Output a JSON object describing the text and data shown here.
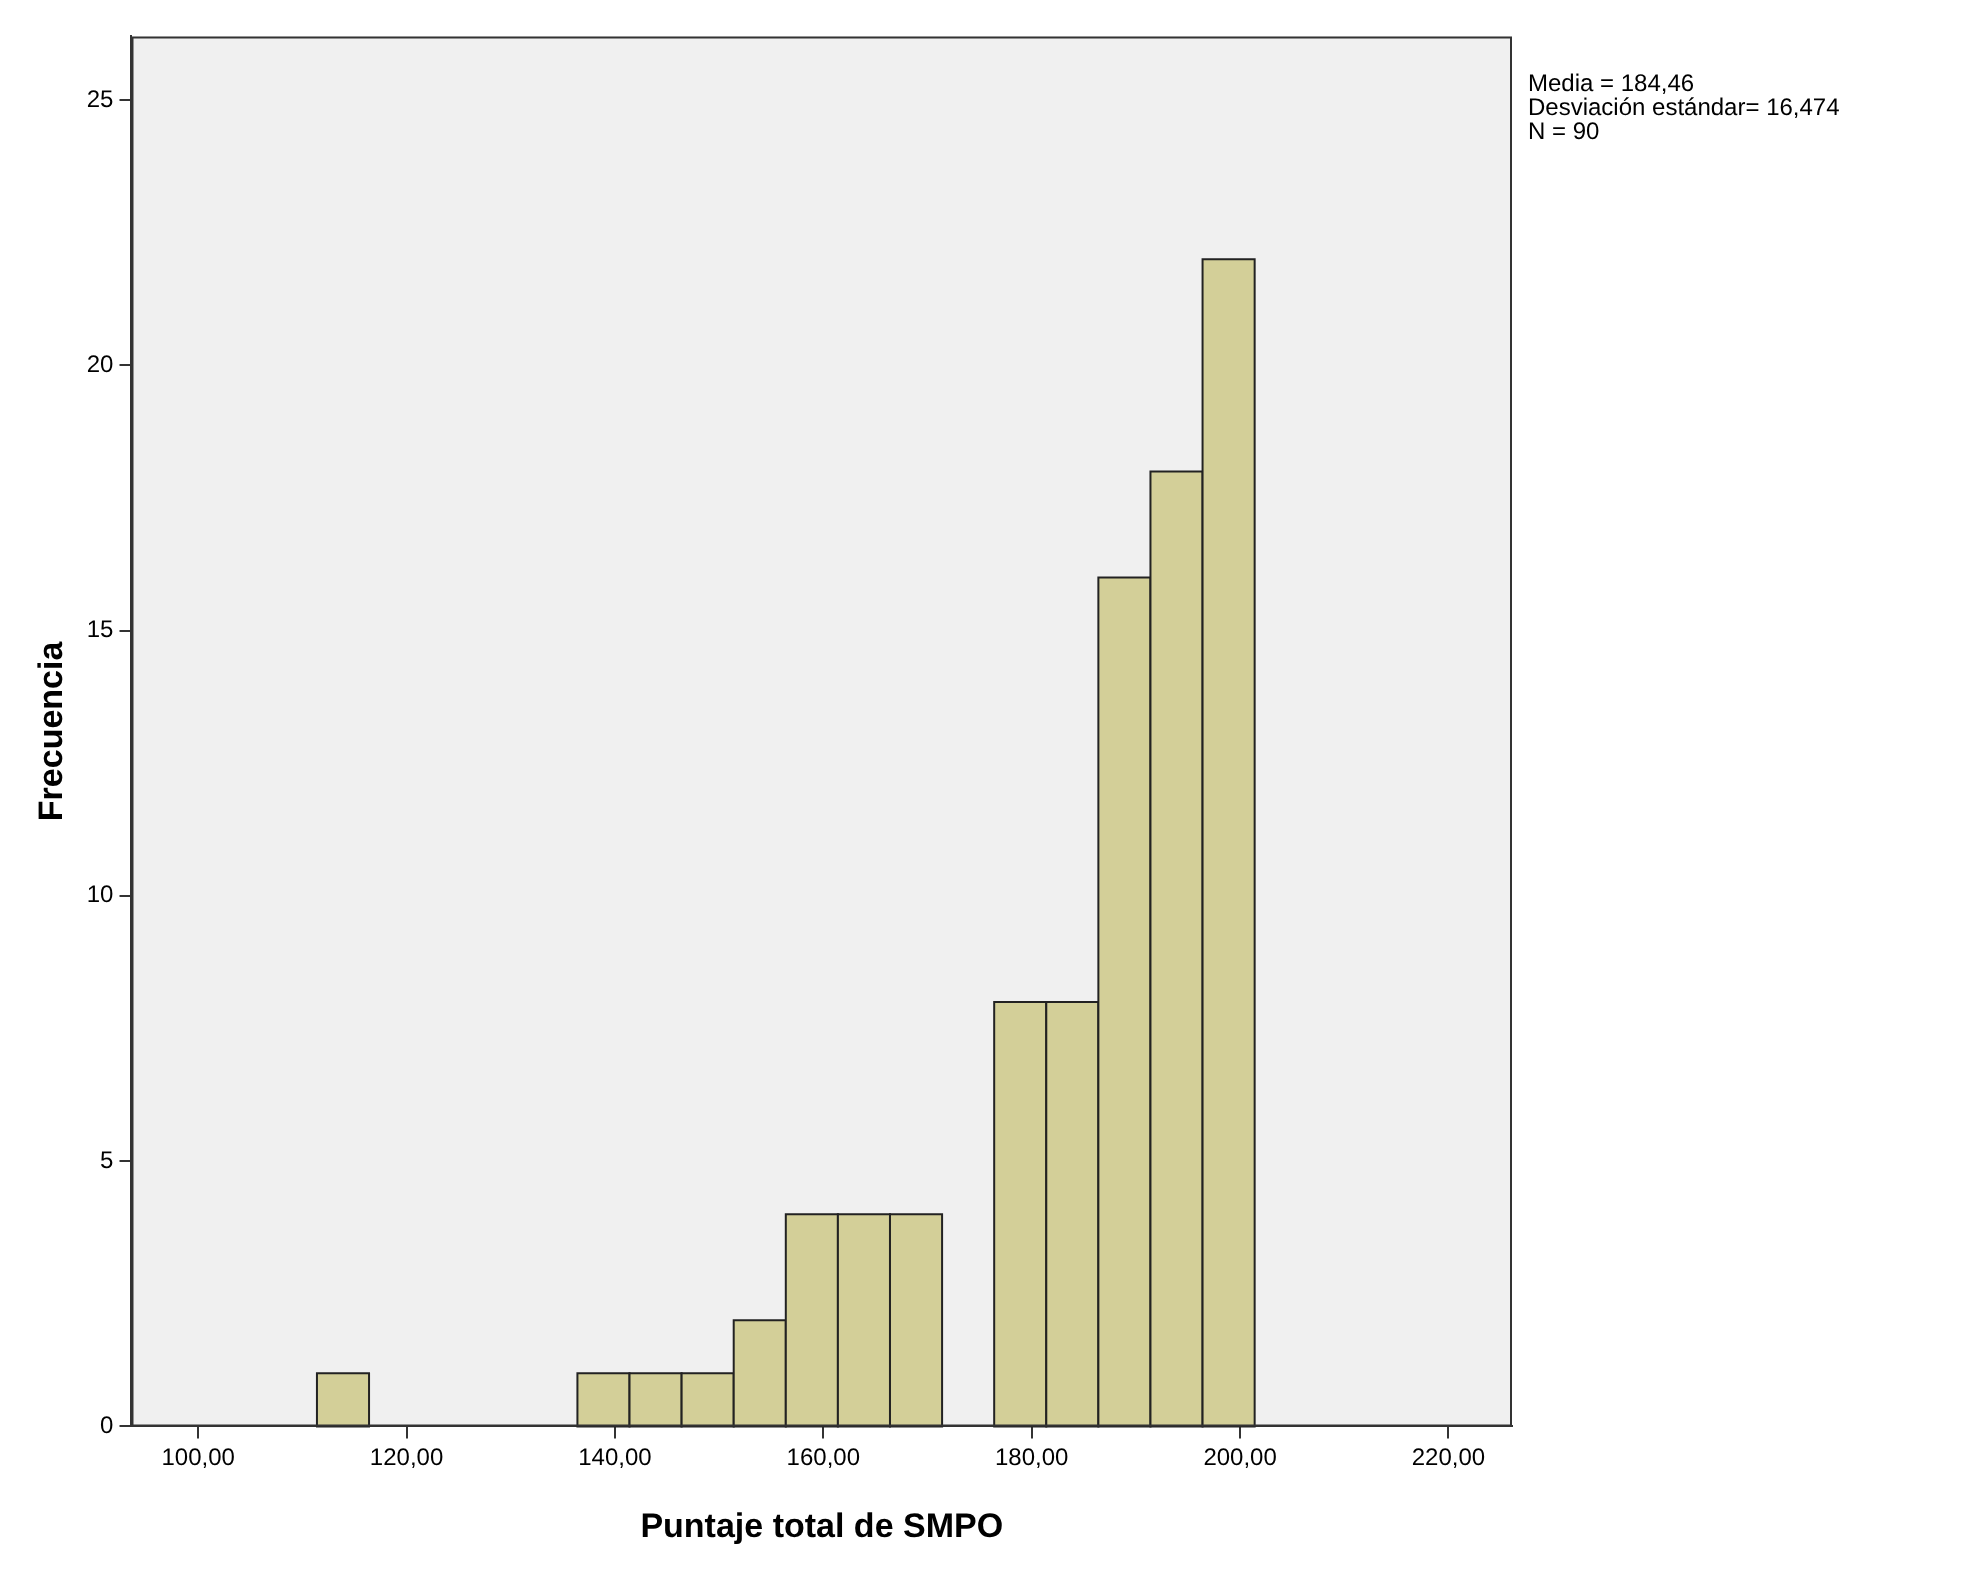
{
  "chart_data": {
    "type": "histogram",
    "xlabel": "Puntaje total de SMPO",
    "ylabel": "Frecuencia",
    "bins": [
      111.4,
      116.4,
      121.4,
      126.4,
      131.4,
      136.4,
      141.4,
      146.4,
      151.4,
      156.4,
      161.4,
      166.4,
      171.4,
      176.4,
      181.4,
      186.4,
      191.4,
      196.4,
      201.4
    ],
    "values": [
      1,
      0,
      0,
      0,
      0,
      1,
      1,
      1,
      2,
      4,
      4,
      4,
      0,
      8,
      8,
      16,
      18,
      22
    ],
    "color": "#d3cf98",
    "xlim": [
      93.6,
      226.1
    ],
    "xticks": [
      {
        "value": 100,
        "label": "100,00"
      },
      {
        "value": 120,
        "label": "120,00"
      },
      {
        "value": 140,
        "label": "140,00"
      },
      {
        "value": 160,
        "label": "160,00"
      },
      {
        "value": 180,
        "label": "180,00"
      },
      {
        "value": 200,
        "label": "200,00"
      },
      {
        "value": 220,
        "label": "220,00"
      }
    ],
    "ylim": [
      0,
      26.2
    ],
    "yticks": [
      0,
      5,
      10,
      15,
      20,
      25
    ],
    "grid": false,
    "legend": false,
    "annotations": [
      "Media = 184,46",
      "Desviación estándar= 16,474",
      "N = 90"
    ]
  }
}
